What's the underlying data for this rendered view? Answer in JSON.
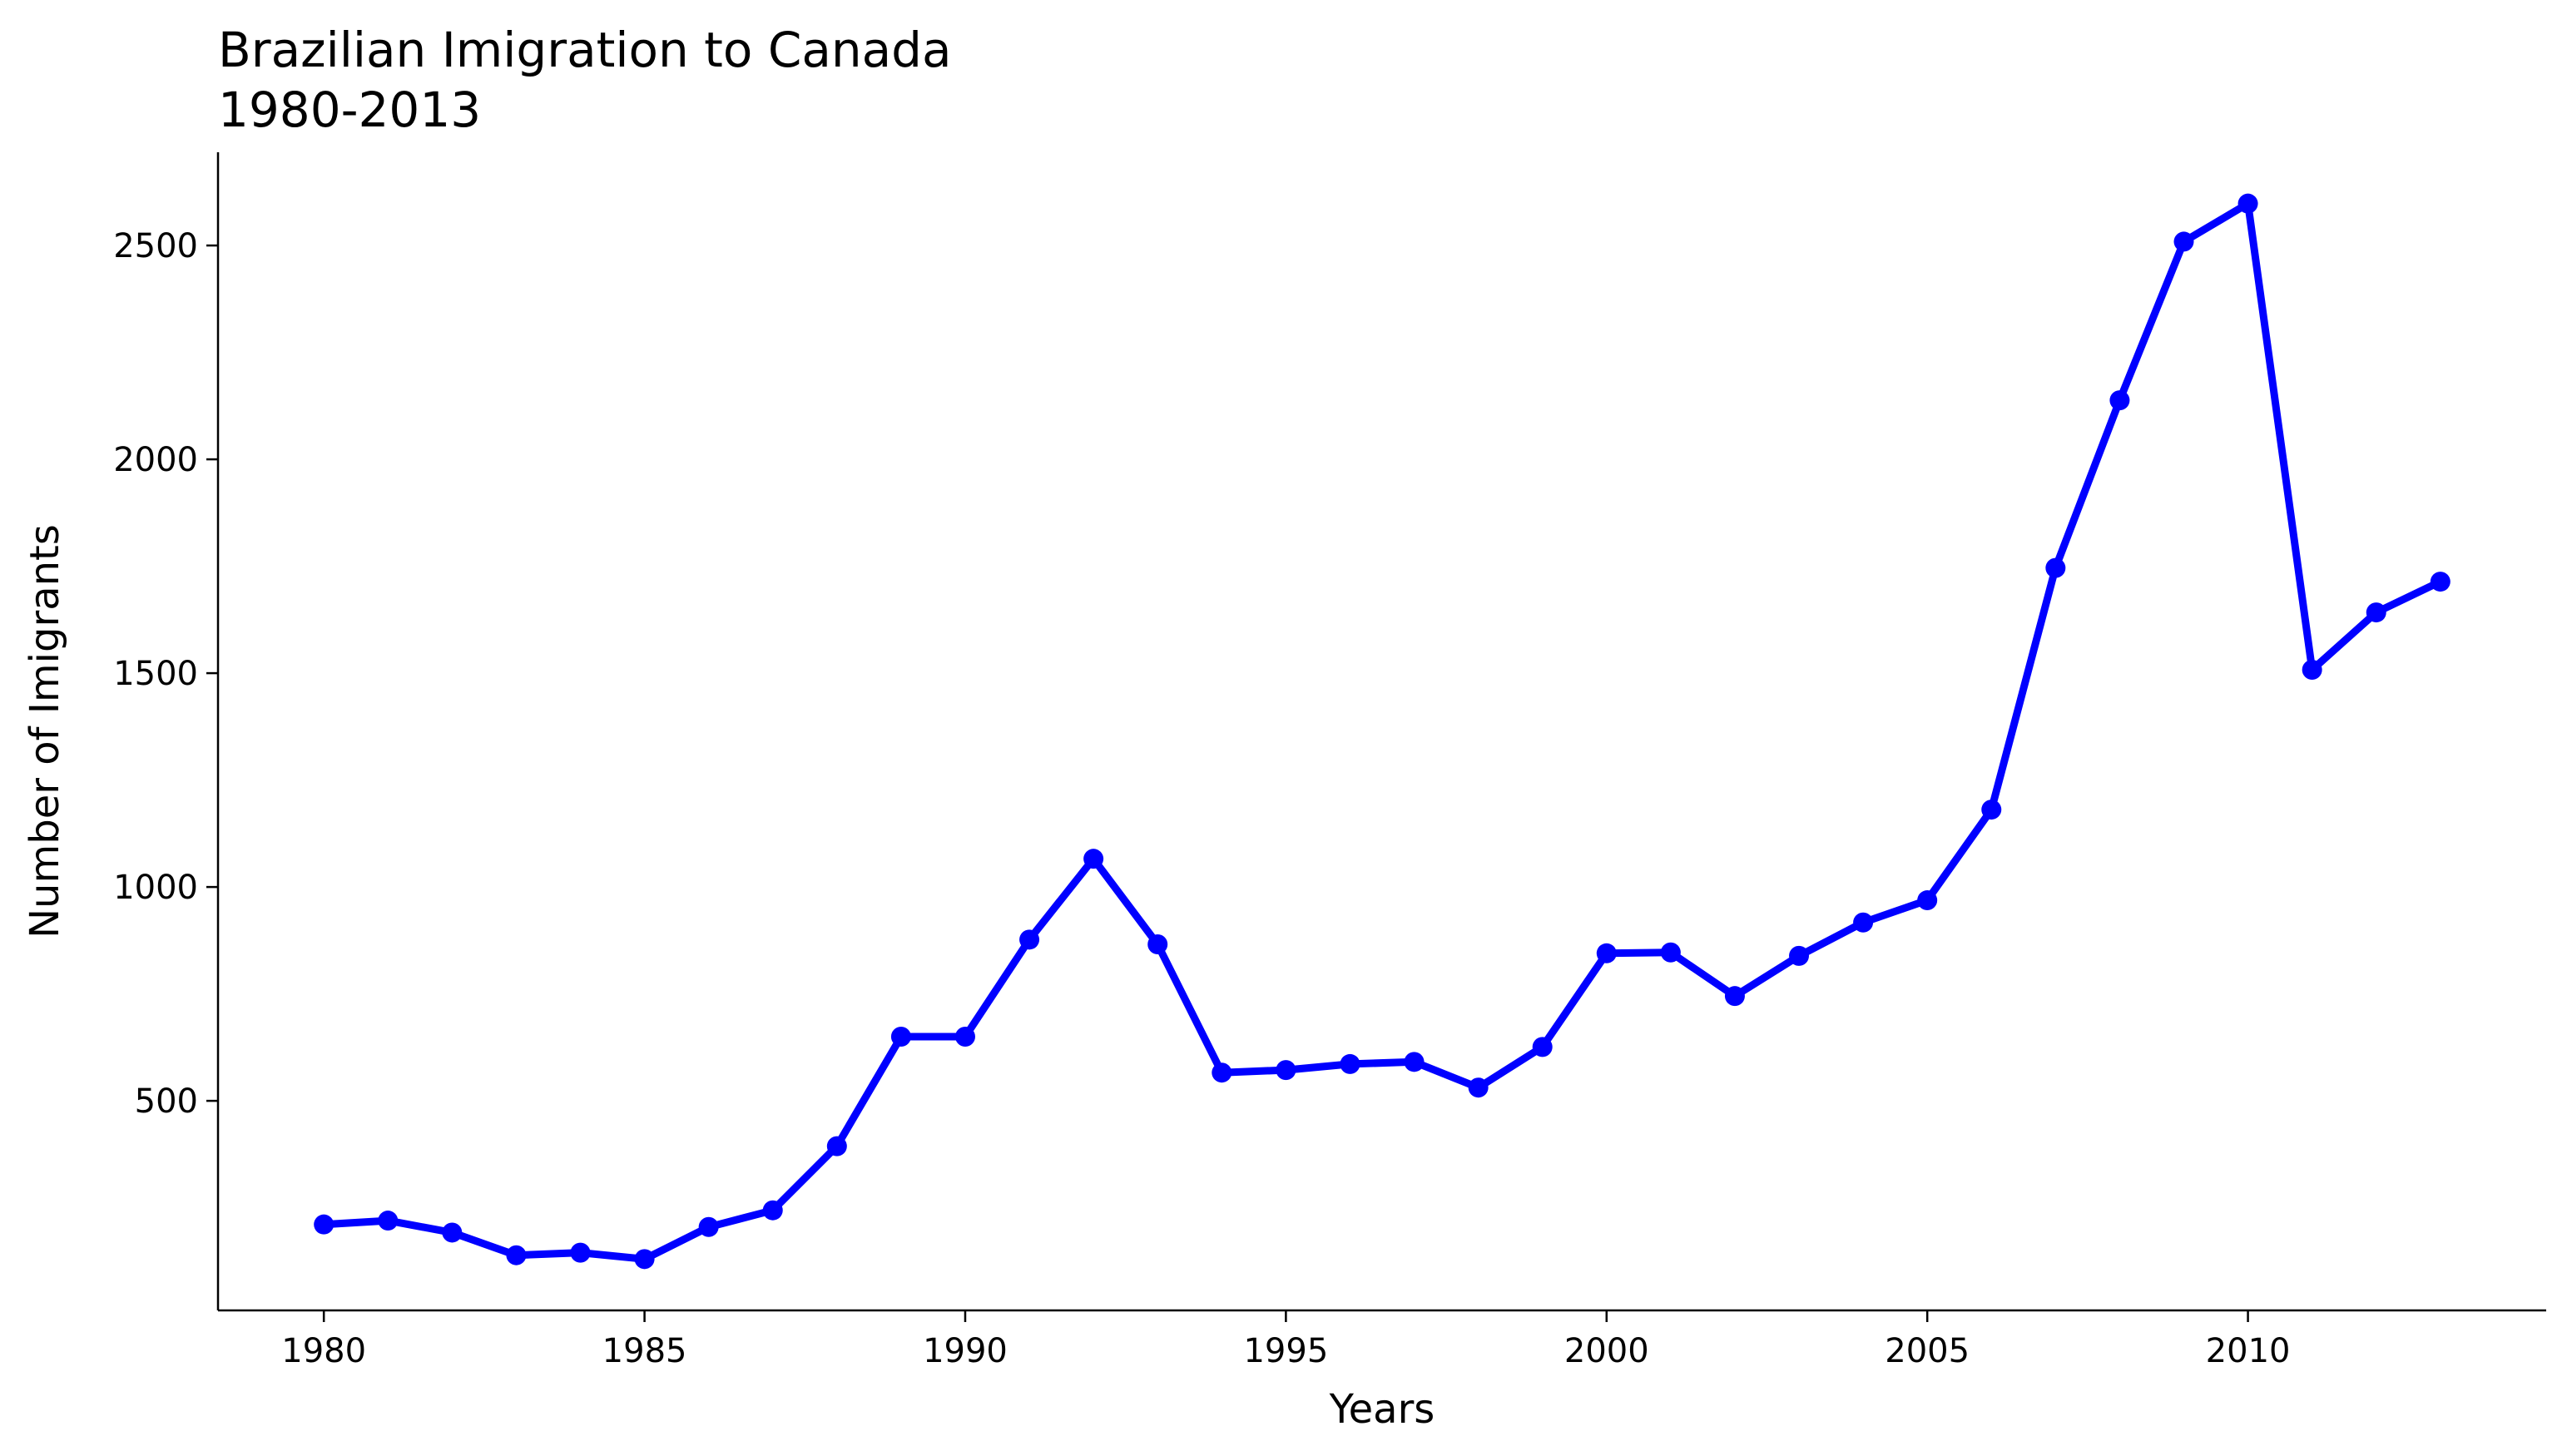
{
  "chart_data": {
    "type": "line",
    "title": "Brazilian Imigration to Canada",
    "subtitle": "1980-2013",
    "xlabel": "Years",
    "ylabel": "Number of Imigrants",
    "x": [
      1980,
      1981,
      1982,
      1983,
      1984,
      1985,
      1986,
      1987,
      1988,
      1989,
      1990,
      1991,
      1992,
      1993,
      1994,
      1995,
      1996,
      1997,
      1998,
      1999,
      2000,
      2001,
      2002,
      2003,
      2004,
      2005,
      2006,
      2007,
      2008,
      2009,
      2010,
      2011,
      2012,
      2013
    ],
    "series": [
      {
        "color": "#0000ff",
        "marker": "circle",
        "values": [
          211,
          220,
          192,
          139,
          145,
          130,
          205,
          244,
          394,
          650,
          650,
          877,
          1066,
          866,
          566,
          572,
          586,
          591,
          531,
          626,
          845,
          847,
          745,
          839,
          917,
          969,
          1181,
          1746,
          2138,
          2509,
          2598,
          1508,
          1642,
          1714
        ]
      }
    ],
    "xticks": [
      "1980",
      "1985",
      "1990",
      "1995",
      "2000",
      "2005",
      "2010"
    ],
    "yticks": [
      "500",
      "1000",
      "1500",
      "2000",
      "2500"
    ],
    "xlim": [
      1978.35,
      2014.65
    ],
    "ylim": [
      10,
      2718
    ],
    "grid": false,
    "spines": [
      "left",
      "bottom"
    ]
  }
}
